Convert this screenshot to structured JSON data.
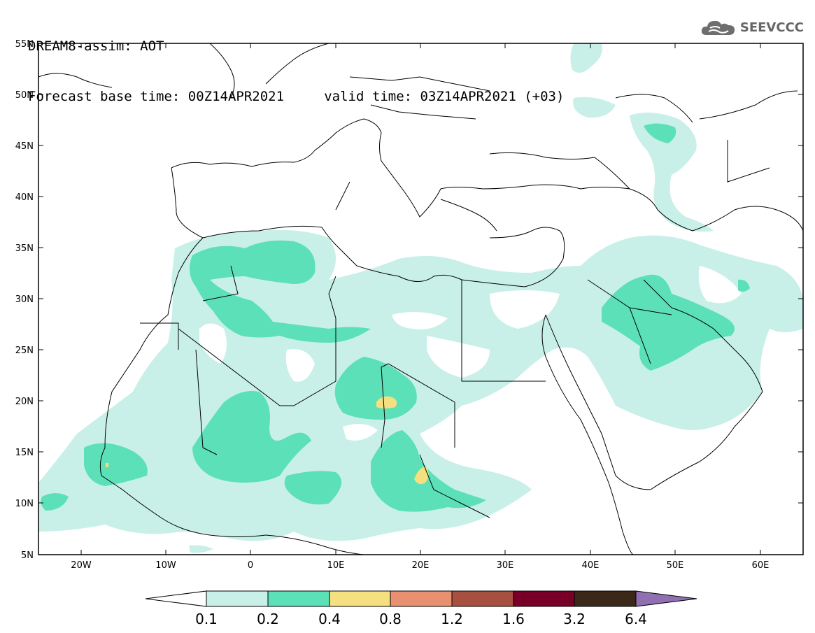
{
  "header": {
    "line1": "DREAM8-assim: AOT",
    "line2": "Forecast base time: 00Z14APR2021     valid time: 03Z14APR2021 (+03)"
  },
  "logo": {
    "text": "SEEVCCC",
    "icon": "cloud-icon"
  },
  "map": {
    "lon_range": [
      -25,
      65
    ],
    "lat_range": [
      5,
      55
    ],
    "lat_labels": [
      "55N",
      "50N",
      "45N",
      "40N",
      "35N",
      "30N",
      "25N",
      "20N",
      "15N",
      "10N",
      "5N"
    ],
    "lon_labels": [
      "20W",
      "10W",
      "0",
      "10E",
      "20E",
      "30E",
      "40E",
      "50E",
      "60E"
    ]
  },
  "colorbar": {
    "labels": [
      "0.1",
      "0.2",
      "0.4",
      "0.8",
      "1.2",
      "1.6",
      "3.2",
      "6.4"
    ],
    "colors": [
      "#ffffff",
      "#c8f0e8",
      "#5ce0b8",
      "#f5e080",
      "#e89070",
      "#a85040",
      "#780028",
      "#3c2818",
      "#9070b0"
    ]
  },
  "colors": {
    "level1": "#c8f0e8",
    "level2": "#5ce0b8",
    "level3": "#f5e080"
  }
}
